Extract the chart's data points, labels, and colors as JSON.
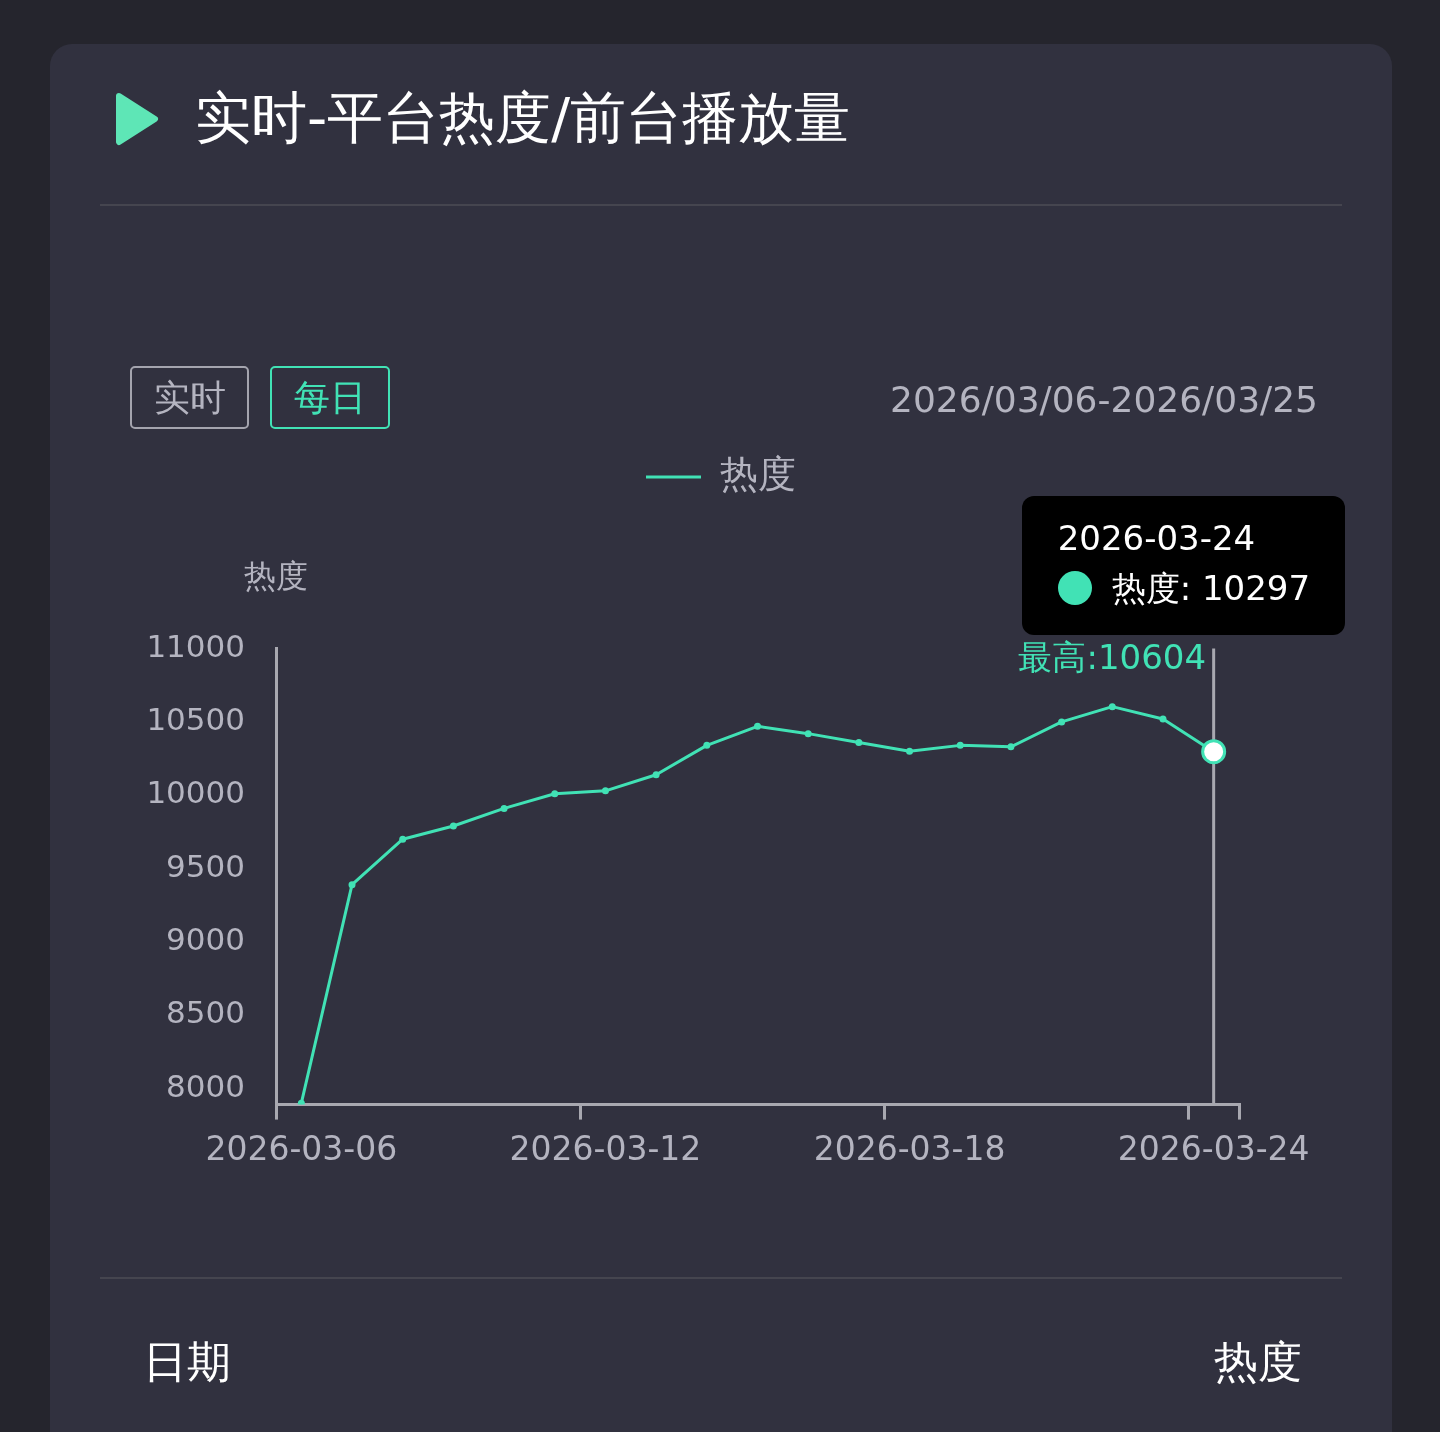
{
  "chart_data": {
    "type": "line",
    "title": "实时-平台热度/前台播放量",
    "subtitle": "2026/03/06-2026/03/25",
    "ylabel": "热度",
    "categories": [
      "2026-03-06",
      null,
      null,
      null,
      null,
      null,
      "2026-03-12",
      null,
      null,
      null,
      null,
      null,
      "2026-03-18",
      null,
      null,
      null,
      null,
      null,
      "2026-03-24"
    ],
    "series": [
      {
        "name": "热度",
        "color": "#41e2b5",
        "values": [
          7900,
          9390,
          9700,
          9790,
          9910,
          10010,
          10030,
          10140,
          10340,
          10470,
          10420,
          10360,
          10300,
          10340,
          10330,
          10500,
          10604,
          10520,
          10297
        ]
      }
    ],
    "ylim": [
      7890,
      11000
    ],
    "yticks": [
      8000,
      8500,
      9000,
      9500,
      10000,
      10500,
      11000
    ],
    "grid": false,
    "legend": "top",
    "marker": "circle",
    "line_style": "solid",
    "ref_lines": [
      {
        "axis": "x",
        "value": "2026-03-24",
        "color": "#a8a8b0"
      }
    ],
    "annotations": [
      "实时",
      "每日",
      {
        "text": "最高:10604",
        "y": 10604
      },
      "2026-03-24",
      "热度: 10297",
      "日期",
      "热度"
    ]
  }
}
